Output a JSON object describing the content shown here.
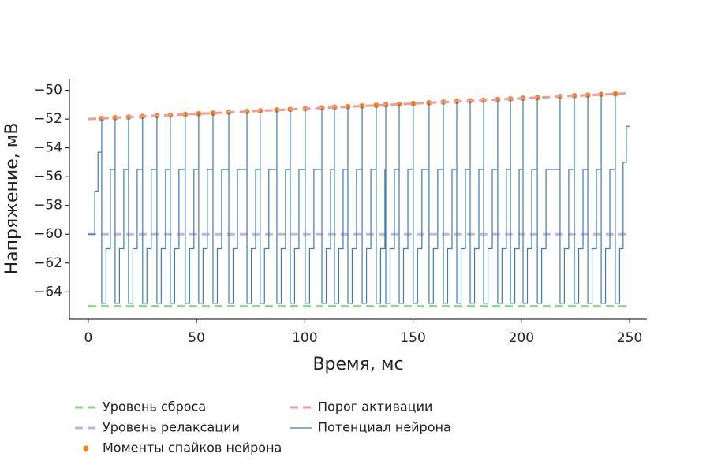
{
  "chart_data": {
    "type": "line",
    "xlabel": "Время, мс",
    "ylabel": "Напряжение, мВ",
    "xlim": [
      -8.7,
      258
    ],
    "ylim": [
      -65.9,
      -49.2
    ],
    "xticks": [
      0,
      50,
      100,
      150,
      200,
      250
    ],
    "yticks": [
      {
        "value": -64,
        "label": "−64"
      },
      {
        "value": -62,
        "label": "−62"
      },
      {
        "value": -60,
        "label": "−60"
      },
      {
        "value": -58,
        "label": "−58"
      },
      {
        "value": -56,
        "label": "−56"
      },
      {
        "value": -54,
        "label": "−54"
      },
      {
        "value": -52,
        "label": "−52"
      },
      {
        "value": -50,
        "label": "−50"
      }
    ],
    "legend": "bottom",
    "series": [
      {
        "name": "Уровень сброса",
        "color": "#8fd18f",
        "dash": true,
        "x": [
          0,
          250
        ],
        "values": [
          -65,
          -65
        ]
      },
      {
        "name": "Уровень релаксации",
        "color": "#c7b2e6",
        "dash": true,
        "x": [
          0,
          250
        ],
        "values": [
          -60,
          -60
        ]
      },
      {
        "name": "Моменты спайков нейрона",
        "color": "#ff7f0e",
        "markers": true,
        "x": [
          6.2,
          12.4,
          18.6,
          25.1,
          31.7,
          37.9,
          44.8,
          51.0,
          57.6,
          64.9,
          73.3,
          79.4,
          87.1,
          93.3,
          100.2,
          107.9,
          113.7,
          119.9,
          126.5,
          133,
          137.4,
          143.6,
          150.1,
          157.4,
          164,
          170.2,
          176.4,
          182.6,
          189.1,
          195,
          200.8,
          207.4,
          217.9,
          224.5,
          230.7,
          236.9,
          243.4
        ],
        "values": [
          -51.96,
          -51.91,
          -51.87,
          -51.82,
          -51.77,
          -51.73,
          -51.68,
          -51.63,
          -51.59,
          -51.53,
          -51.47,
          -51.43,
          -51.37,
          -51.33,
          -51.28,
          -51.22,
          -51.18,
          -51.14,
          -51.09,
          -51.04,
          -51.01,
          -50.97,
          -50.92,
          -50.87,
          -50.82,
          -50.77,
          -50.73,
          -50.69,
          -50.64,
          -50.6,
          -50.55,
          -50.51,
          -50.43,
          -50.38,
          -50.34,
          -50.29,
          -50.25
        ]
      },
      {
        "name": "Порог активации",
        "color": "#f09a9a",
        "dash": true,
        "x": [
          0,
          250
        ],
        "values": [
          -52,
          -50.2
        ]
      },
      {
        "name": "Потенциал нейрона",
        "color": "#3b7db8",
        "step": true,
        "x": [
          0,
          3,
          4.5,
          6.2,
          6.2,
          8.2,
          10.2,
          12.4,
          12.4,
          14.4,
          16.4,
          18.6,
          18.6,
          20.6,
          22.6,
          25.1,
          25.1,
          27.1,
          29.1,
          31.7,
          31.7,
          33.7,
          35.7,
          37.9,
          37.9,
          39.9,
          41.9,
          44.8,
          44.8,
          46.8,
          48.8,
          51.0,
          51.0,
          53,
          55,
          57.6,
          57.6,
          59.6,
          61.6,
          64.9,
          64.9,
          66.9,
          68.9,
          73.3,
          73.3,
          75.3,
          77.3,
          79.4,
          79.4,
          81.4,
          83.4,
          87.1,
          87.1,
          89.1,
          91.1,
          93.3,
          93.3,
          95.3,
          97.3,
          100.2,
          100.2,
          102.2,
          104.2,
          107.9,
          107.9,
          109.9,
          111.9,
          113.7,
          113.7,
          115.7,
          117.7,
          119.9,
          119.9,
          121.9,
          123.9,
          126.5,
          126.5,
          128.5,
          130.5,
          133,
          133,
          135,
          137,
          137.4,
          137.4,
          139.4,
          141.4,
          143.6,
          143.6,
          145.6,
          147.6,
          150.1,
          150.1,
          152.1,
          154.1,
          157.4,
          157.4,
          159.4,
          161.4,
          164,
          164,
          166,
          168,
          170.2,
          170.2,
          172.2,
          174.2,
          176.4,
          176.4,
          178.4,
          180.4,
          182.6,
          182.6,
          184.6,
          186.6,
          189.1,
          189.1,
          191.1,
          193.1,
          195,
          195,
          197,
          199,
          200.8,
          200.8,
          202.8,
          204.8,
          207.4,
          207.4,
          209.4,
          211.4,
          217.9,
          217.9,
          219.9,
          221.9,
          224.5,
          224.5,
          226.5,
          228.5,
          230.7,
          230.7,
          232.7,
          234.7,
          236.9,
          236.9,
          238.9,
          240.9,
          243.4,
          243.4,
          245.4,
          247,
          248.5,
          250
        ],
        "values": [
          -60,
          -57,
          -54.3,
          -51.96,
          -64.8,
          -61,
          -55.5,
          -51.91,
          -64.8,
          -61,
          -55.5,
          -51.87,
          -64.8,
          -61,
          -55.5,
          -51.82,
          -64.8,
          -61,
          -55.5,
          -51.77,
          -64.8,
          -61,
          -55.5,
          -51.73,
          -64.8,
          -61,
          -55.5,
          -51.68,
          -64.8,
          -61,
          -55.5,
          -51.63,
          -64.8,
          -61,
          -55.5,
          -51.59,
          -64.8,
          -61,
          -55.5,
          -51.53,
          -64.8,
          -61,
          -55.5,
          -51.47,
          -64.8,
          -61,
          -55.5,
          -51.43,
          -64.8,
          -61,
          -55.5,
          -51.37,
          -64.8,
          -61,
          -55.5,
          -51.33,
          -64.8,
          -61,
          -55.5,
          -51.28,
          -64.8,
          -61,
          -55.5,
          -51.22,
          -64.8,
          -61,
          -55.5,
          -51.18,
          -64.8,
          -61,
          -55.5,
          -51.14,
          -64.8,
          -61,
          -55.5,
          -51.09,
          -64.8,
          -61,
          -55.5,
          -51.04,
          -64.8,
          -61,
          -55.5,
          -51.01,
          -64.8,
          -61,
          -55.5,
          -50.97,
          -64.8,
          -61,
          -55.5,
          -50.92,
          -64.8,
          -61,
          -55.5,
          -50.87,
          -64.8,
          -61,
          -55.5,
          -50.82,
          -64.8,
          -61,
          -55.5,
          -50.77,
          -64.8,
          -61,
          -55.5,
          -50.73,
          -64.8,
          -61,
          -55.5,
          -50.69,
          -64.8,
          -61,
          -55.5,
          -50.64,
          -64.8,
          -61,
          -55.5,
          -50.6,
          -64.8,
          -61,
          -55.5,
          -50.55,
          -64.8,
          -61,
          -55.5,
          -50.51,
          -64.8,
          -61,
          -55.5,
          -50.43,
          -64.8,
          -61,
          -55.5,
          -50.38,
          -64.8,
          -61,
          -55.5,
          -50.34,
          -64.8,
          -61,
          -55.5,
          -50.29,
          -64.8,
          -61,
          -55.5,
          -50.25,
          -64.8,
          -61,
          -55,
          -52.5,
          -52.5
        ]
      }
    ]
  }
}
